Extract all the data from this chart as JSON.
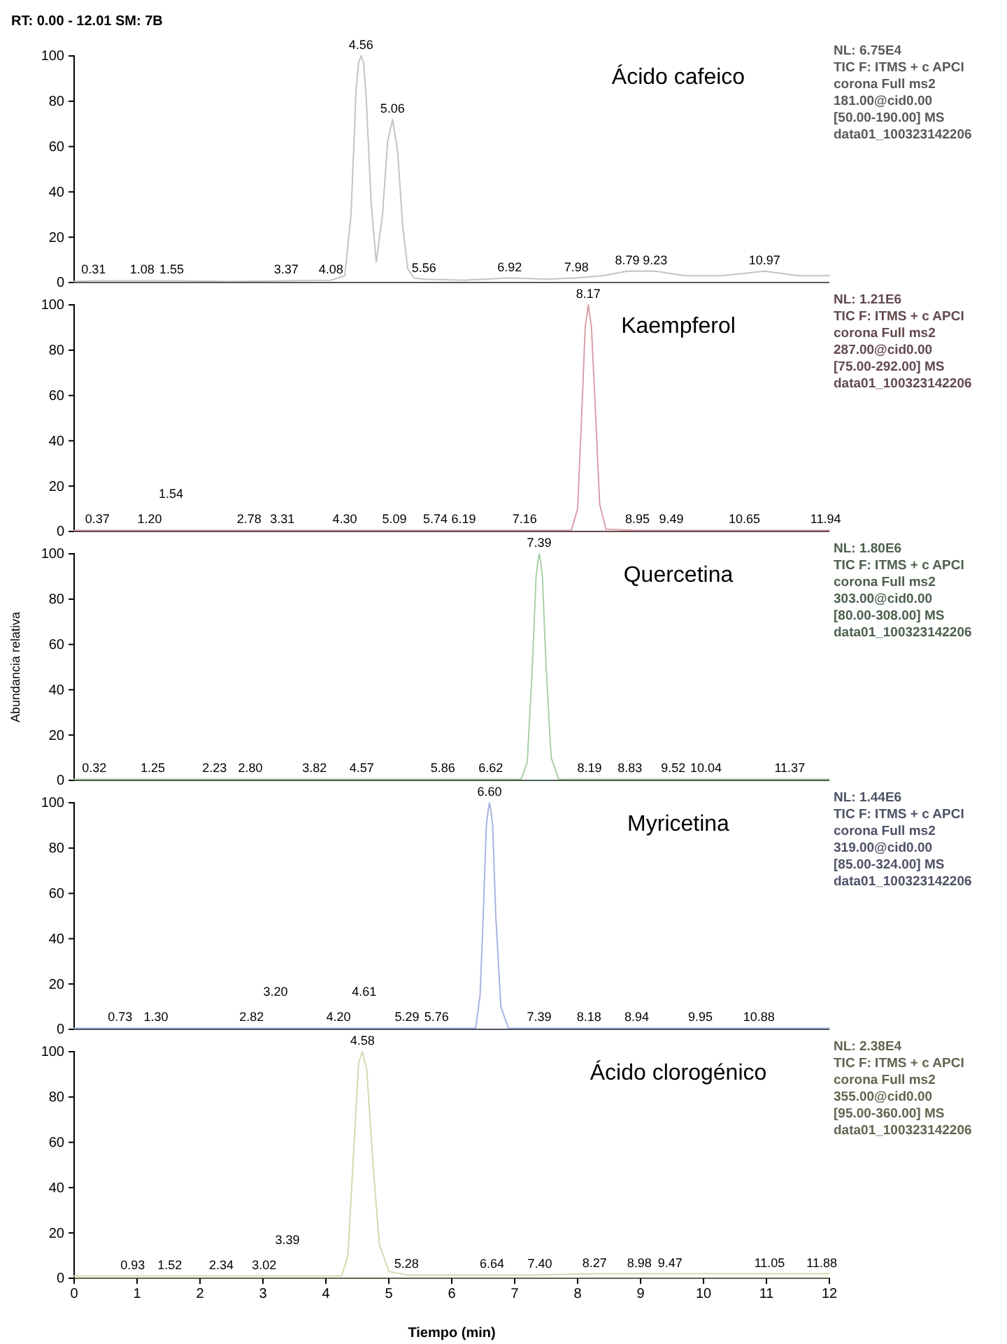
{
  "chart_data": [
    {
      "type": "line",
      "title": "Ácido cafeico",
      "subtitle": "RT: 0.00 - 12.01  SM: 7B",
      "xlim": [
        0,
        12
      ],
      "ylim": [
        0,
        100
      ],
      "yticks": [
        0,
        20,
        40,
        60,
        80,
        100
      ],
      "tick_labels": "y",
      "series": [
        {
          "color": "#c4c4c4",
          "x": [
            0,
            0.31,
            1.08,
            1.55,
            2.5,
            3.37,
            4.08,
            4.3,
            4.4,
            4.48,
            4.52,
            4.56,
            4.6,
            4.64,
            4.72,
            4.8,
            4.9,
            4.98,
            5.06,
            5.14,
            5.22,
            5.3,
            5.4,
            5.56,
            6.2,
            6.92,
            7.5,
            7.98,
            8.4,
            8.79,
            9.23,
            9.7,
            10.3,
            10.97,
            11.5,
            12
          ],
          "values": [
            0.5,
            0.8,
            0.8,
            0.8,
            0.5,
            0.8,
            1,
            3,
            30,
            85,
            97,
            100,
            97,
            82,
            35,
            9,
            30,
            62,
            72,
            58,
            25,
            6,
            2,
            1.5,
            1,
            2,
            1.5,
            2,
            3,
            5,
            5,
            3,
            3,
            5,
            3,
            3
          ]
        }
      ],
      "annotations": [
        {
          "text": "4.56",
          "x": 4.56,
          "y": 100
        },
        {
          "text": "5.06",
          "x": 5.06,
          "y": 72
        },
        {
          "text": "0.31",
          "x": 0.31,
          "y": 0.8
        },
        {
          "text": "1.08",
          "x": 1.08,
          "y": 0.8
        },
        {
          "text": "1.55",
          "x": 1.55,
          "y": 0.8
        },
        {
          "text": "3.37",
          "x": 3.37,
          "y": 0.8
        },
        {
          "text": "4.08",
          "x": 4.08,
          "y": 1
        },
        {
          "text": "5.56",
          "x": 5.56,
          "y": 1.5
        },
        {
          "text": "6.92",
          "x": 6.92,
          "y": 2
        },
        {
          "text": "7.98",
          "x": 7.98,
          "y": 2
        },
        {
          "text": "8.79",
          "x": 8.79,
          "y": 5
        },
        {
          "text": "9.23",
          "x": 9.23,
          "y": 5
        },
        {
          "text": "10.97",
          "x": 10.97,
          "y": 5
        },
        "NL: 6.75E4",
        "TIC F: ITMS + c APCI",
        "corona Full ms2",
        "181.00@cid0.00",
        "[50.00-190.00]  MS",
        "data01_100323142206"
      ]
    },
    {
      "type": "line",
      "title": "Kaempferol",
      "xlim": [
        0,
        12
      ],
      "ylim": [
        0,
        100
      ],
      "yticks": [
        0,
        20,
        40,
        60,
        80,
        100
      ],
      "tick_labels": "y",
      "series": [
        {
          "color": "#d9a0a8",
          "x": [
            0,
            0.37,
            1.2,
            1.54,
            2.78,
            3.31,
            4.3,
            5.09,
            5.74,
            6.19,
            7.16,
            7.9,
            8.0,
            8.07,
            8.12,
            8.17,
            8.22,
            8.28,
            8.35,
            8.45,
            8.95,
            9.49,
            10.65,
            11.94,
            12
          ],
          "values": [
            0.5,
            0.5,
            0.5,
            0.5,
            0.5,
            0.5,
            0.5,
            0.5,
            0.5,
            0.5,
            0.5,
            0.5,
            10,
            55,
            90,
            100,
            90,
            55,
            12,
            1,
            0.5,
            0.5,
            0.5,
            0.5,
            0.5
          ]
        }
      ],
      "annotations": [
        {
          "text": "8.17",
          "x": 8.17,
          "y": 100
        },
        {
          "text": "0.37",
          "x": 0.37,
          "y": 0.5
        },
        {
          "text": "1.20",
          "x": 1.2,
          "y": 0.5
        },
        {
          "text": "1.54",
          "x": 1.54,
          "y": 0.5
        },
        {
          "text": "2.78",
          "x": 2.78,
          "y": 0.5
        },
        {
          "text": "3.31",
          "x": 3.31,
          "y": 0.5
        },
        {
          "text": "4.30",
          "x": 4.3,
          "y": 0.5
        },
        {
          "text": "5.09",
          "x": 5.09,
          "y": 0.5
        },
        {
          "text": "5.74",
          "x": 5.74,
          "y": 0.5
        },
        {
          "text": "6.19",
          "x": 6.19,
          "y": 0.5
        },
        {
          "text": "7.16",
          "x": 7.16,
          "y": 0.5
        },
        {
          "text": "8.95",
          "x": 8.95,
          "y": 0.5
        },
        {
          "text": "9.49",
          "x": 9.49,
          "y": 0.5
        },
        {
          "text": "10.65",
          "x": 10.65,
          "y": 0.5
        },
        {
          "text": "11.94",
          "x": 11.94,
          "y": 0.5
        },
        "NL: 1.21E6",
        "TIC F: ITMS + c APCI",
        "corona Full ms2",
        "287.00@cid0.00",
        "[75.00-292.00]  MS",
        "data01_100323142206"
      ]
    },
    {
      "type": "line",
      "title": "Quercetina",
      "ylabel": "Abundancia relativa",
      "xlim": [
        0,
        12
      ],
      "ylim": [
        0,
        100
      ],
      "yticks": [
        0,
        20,
        40,
        60,
        80,
        100
      ],
      "tick_labels": "y",
      "series": [
        {
          "color": "#a8d0a8",
          "x": [
            0,
            0.32,
            1.25,
            2.23,
            2.8,
            3.82,
            4.57,
            5.86,
            6.62,
            7.1,
            7.2,
            7.28,
            7.34,
            7.37,
            7.39,
            7.41,
            7.44,
            7.5,
            7.58,
            7.7,
            8.19,
            8.83,
            9.52,
            10.04,
            11.37,
            12
          ],
          "values": [
            0.5,
            0.5,
            0.5,
            0.5,
            0.5,
            0.5,
            0.5,
            0.5,
            0.5,
            0.5,
            8,
            50,
            90,
            97,
            100,
            97,
            90,
            50,
            10,
            0.5,
            0.5,
            0.5,
            0.5,
            0.5,
            0.5,
            0.5
          ]
        }
      ],
      "annotations": [
        {
          "text": "7.39",
          "x": 7.39,
          "y": 100
        },
        {
          "text": "0.32",
          "x": 0.32,
          "y": 0.5
        },
        {
          "text": "1.25",
          "x": 1.25,
          "y": 0.5
        },
        {
          "text": "2.23",
          "x": 2.23,
          "y": 0.5
        },
        {
          "text": "2.80",
          "x": 2.8,
          "y": 0.5
        },
        {
          "text": "3.82",
          "x": 3.82,
          "y": 0.5
        },
        {
          "text": "4.57",
          "x": 4.57,
          "y": 0.5
        },
        {
          "text": "5.86",
          "x": 5.86,
          "y": 0.5
        },
        {
          "text": "6.62",
          "x": 6.62,
          "y": 0.5
        },
        {
          "text": "8.19",
          "x": 8.19,
          "y": 0.5
        },
        {
          "text": "8.83",
          "x": 8.83,
          "y": 0.5
        },
        {
          "text": "9.52",
          "x": 9.52,
          "y": 0.5
        },
        {
          "text": "10.04",
          "x": 10.04,
          "y": 0.5
        },
        {
          "text": "11.37",
          "x": 11.37,
          "y": 0.5
        },
        "NL: 1.80E6",
        "TIC F: ITMS + c APCI",
        "corona Full ms2",
        "303.00@cid0.00",
        "[80.00-308.00]  MS",
        "data01_100323142206"
      ]
    },
    {
      "type": "line",
      "title": "Myricetina",
      "xlim": [
        0,
        12
      ],
      "ylim": [
        0,
        100
      ],
      "yticks": [
        0,
        20,
        40,
        60,
        80,
        100
      ],
      "tick_labels": "y",
      "series": [
        {
          "color": "#a8b4e0",
          "x": [
            0,
            0.73,
            1.3,
            2.82,
            3.2,
            4.2,
            4.61,
            5.29,
            5.76,
            6.38,
            6.45,
            6.5,
            6.55,
            6.58,
            6.6,
            6.62,
            6.65,
            6.7,
            6.78,
            6.9,
            7.39,
            8.18,
            8.94,
            9.95,
            10.88,
            12
          ],
          "values": [
            0.5,
            0.5,
            0.5,
            0.5,
            0.5,
            0.5,
            0.5,
            0.5,
            0.5,
            0.5,
            15,
            50,
            90,
            97,
            100,
            97,
            90,
            50,
            10,
            0.5,
            0.5,
            0.5,
            0.5,
            0.5,
            0.5,
            0.5
          ]
        }
      ],
      "annotations": [
        {
          "text": "6.60",
          "x": 6.6,
          "y": 100
        },
        {
          "text": "0.73",
          "x": 0.73,
          "y": 0.5
        },
        {
          "text": "1.30",
          "x": 1.3,
          "y": 0.5
        },
        {
          "text": "2.82",
          "x": 2.82,
          "y": 0.5
        },
        {
          "text": "3.20",
          "x": 3.2,
          "y": 0.5
        },
        {
          "text": "4.20",
          "x": 4.2,
          "y": 0.5
        },
        {
          "text": "4.61",
          "x": 4.61,
          "y": 0.5
        },
        {
          "text": "5.29",
          "x": 5.29,
          "y": 0.5
        },
        {
          "text": "5.76",
          "x": 5.76,
          "y": 0.5
        },
        {
          "text": "7.39",
          "x": 7.39,
          "y": 0.5
        },
        {
          "text": "8.18",
          "x": 8.18,
          "y": 0.5
        },
        {
          "text": "8.94",
          "x": 8.94,
          "y": 0.5
        },
        {
          "text": "9.95",
          "x": 9.95,
          "y": 0.5
        },
        {
          "text": "10.88",
          "x": 10.88,
          "y": 0.5
        },
        "NL: 1.44E6",
        "TIC F: ITMS + c APCI",
        "corona Full ms2",
        "319.00@cid0.00",
        "[85.00-324.00]  MS",
        "data01_100323142206"
      ]
    },
    {
      "type": "line",
      "title": "Ácido clorogénico",
      "xlabel": "Tiempo (min)",
      "xlim": [
        0,
        12
      ],
      "ylim": [
        0,
        100
      ],
      "yticks": [
        0,
        20,
        40,
        60,
        80,
        100
      ],
      "xticks": [
        0,
        1,
        2,
        3,
        4,
        5,
        6,
        7,
        8,
        9,
        10,
        11,
        12
      ],
      "series": [
        {
          "color": "#d8d8b0",
          "x": [
            0,
            0.93,
            1.52,
            2.34,
            3.02,
            3.39,
            4.25,
            4.35,
            4.45,
            4.52,
            4.58,
            4.65,
            4.75,
            4.85,
            5.0,
            5.28,
            6.64,
            7.4,
            8.27,
            8.98,
            9.47,
            11.05,
            11.88,
            12
          ],
          "values": [
            1,
            1,
            1,
            1,
            1,
            1,
            1,
            10,
            60,
            95,
            100,
            92,
            50,
            15,
            3,
            1.5,
            1.5,
            1.5,
            2,
            2,
            2,
            2,
            2,
            2
          ]
        }
      ],
      "annotations": [
        {
          "text": "4.58",
          "x": 4.58,
          "y": 100
        },
        {
          "text": "0.93",
          "x": 0.93,
          "y": 1
        },
        {
          "text": "1.52",
          "x": 1.52,
          "y": 1
        },
        {
          "text": "2.34",
          "x": 2.34,
          "y": 1
        },
        {
          "text": "3.02",
          "x": 3.02,
          "y": 1
        },
        {
          "text": "3.39",
          "x": 3.39,
          "y": 1
        },
        {
          "text": "5.28",
          "x": 5.28,
          "y": 1.5
        },
        {
          "text": "6.64",
          "x": 6.64,
          "y": 1.5
        },
        {
          "text": "7.40",
          "x": 7.4,
          "y": 1.5
        },
        {
          "text": "8.27",
          "x": 8.27,
          "y": 2
        },
        {
          "text": "8.98",
          "x": 8.98,
          "y": 2
        },
        {
          "text": "9.47",
          "x": 9.47,
          "y": 2
        },
        {
          "text": "11.05",
          "x": 11.05,
          "y": 2
        },
        {
          "text": "11.88",
          "x": 11.88,
          "y": 2
        },
        "NL: 2.38E4",
        "TIC F: ITMS + c APCI",
        "corona Full ms2",
        "355.00@cid0.00",
        "[95.00-360.00]  MS",
        "data01_100323142206"
      ]
    }
  ]
}
